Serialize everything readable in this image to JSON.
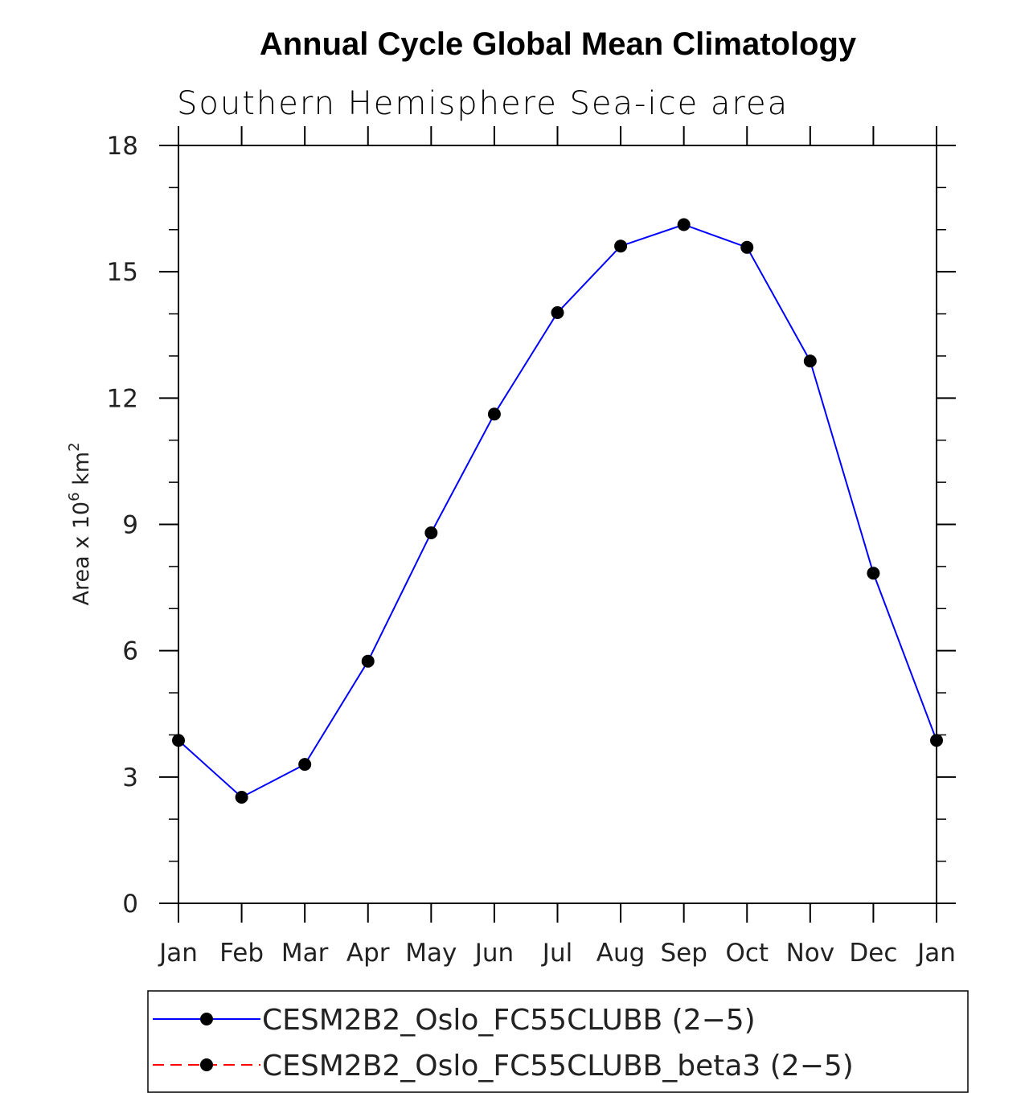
{
  "chart_data": {
    "type": "line",
    "title": "Annual Cycle Global Mean Climatology",
    "subtitle": "Southern Hemisphere Sea-ice area",
    "xlabel": "",
    "ylabel": "Area x 10",
    "ylabel_exponent": "6",
    "ylabel_unit": "km",
    "ylabel_unit_exponent": "2",
    "categories": [
      "Jan",
      "Feb",
      "Mar",
      "Apr",
      "May",
      "Jun",
      "Jul",
      "Aug",
      "Sep",
      "Oct",
      "Nov",
      "Dec",
      "Jan"
    ],
    "ylim": [
      0,
      18
    ],
    "yticks": [
      0,
      3,
      6,
      9,
      12,
      15,
      18
    ],
    "grid": false,
    "series": [
      {
        "name": "CESM2B2_Oslo_FC55CLUBB (2-5)",
        "color": "#0000ff",
        "line_style": "solid",
        "marker": "filled-circle",
        "values": [
          3.87,
          2.52,
          3.3,
          5.75,
          8.8,
          11.62,
          14.03,
          15.61,
          16.12,
          15.58,
          12.88,
          7.84,
          3.87
        ]
      },
      {
        "name": "CESM2B2_Oslo_FC55CLUBB_beta3 (2-5)",
        "color": "#ff0000",
        "line_style": "dashed",
        "marker": "filled-circle",
        "values": []
      }
    ],
    "legend": {
      "placement": "bottom",
      "entries": [
        "CESM2B2_Oslo_FC55CLUBB (2−5)",
        "CESM2B2_Oslo_FC55CLUBB_beta3 (2−5)"
      ]
    }
  }
}
